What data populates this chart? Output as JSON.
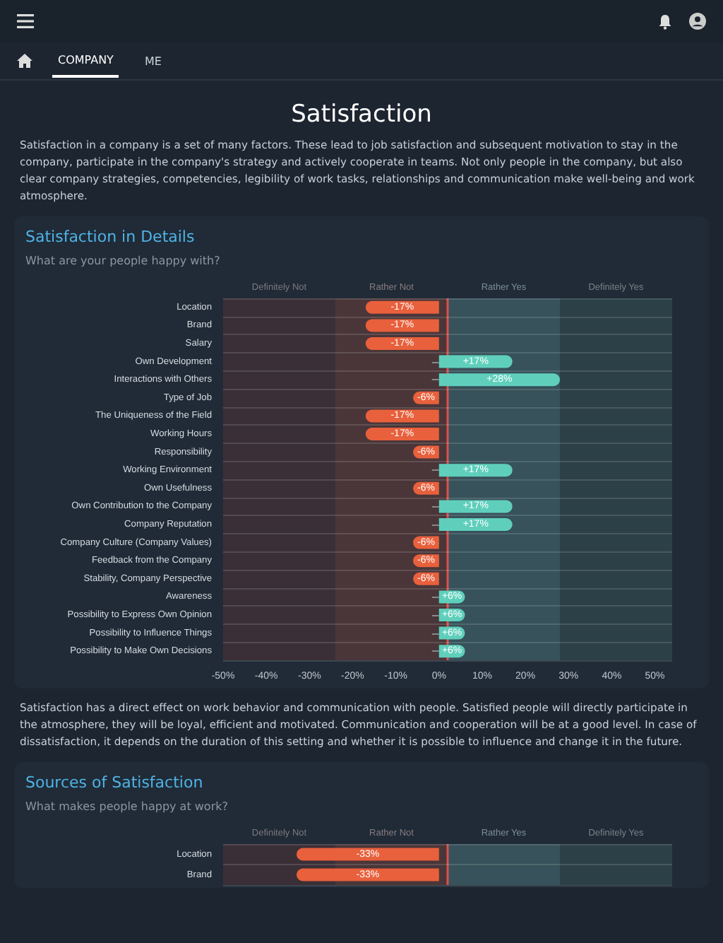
{
  "chart_data": [
    {
      "type": "bar",
      "orientation": "horizontal",
      "title": "Satisfaction in Details",
      "subtitle": "What are your people happy with?",
      "annotations": [
        "COMPANY",
        "ME",
        "Satisfaction",
        "Satisfaction in a company is a set of many factors. These lead to job satisfaction and subsequent motivation to stay in the company, participate in the company's strategy and actively cooperate in teams. Not only people in the company, but also clear company strategies, competencies, legibility of work tasks, relationships and communication make well-being and work atmosphere.",
        "Satisfaction has a direct effect on work behavior and communication with people. Satisfied people will directly participate in the atmosphere, they will be loyal, efficient and motivated. Communication and cooperation will be at a good level. In case of dissatisfaction, it depends on the duration of this setting and whether it is possible to influence and change it in the future."
      ],
      "categories": [
        "Location",
        "Brand",
        "Salary",
        "Own Development",
        "Interactions with Others",
        "Type of Job",
        "The Uniqueness of the Field",
        "Working Hours",
        "Responsibility",
        "Working Environment",
        "Own Usefulness",
        "Own Contribution to the Company",
        "Company Reputation",
        "Company Culture (Company Values)",
        "Feedback from the Company",
        "Stability, Company Perspective",
        "Awareness",
        "Possibility to Express Own Opinion",
        "Possibility to Influence Things",
        "Possibility to Make Own Decisions"
      ],
      "values": [
        -17,
        -17,
        -17,
        17,
        28,
        -6,
        -17,
        -17,
        -6,
        17,
        -6,
        17,
        17,
        -6,
        -6,
        -6,
        6,
        6,
        6,
        6
      ],
      "value_labels": [
        "-17%",
        "-17%",
        "-17%",
        "+17%",
        "+28%",
        "-6%",
        "-17%",
        "-17%",
        "-6%",
        "+17%",
        "-6%",
        "+17%",
        "+17%",
        "-6%",
        "-6%",
        "-6%",
        "+6%",
        "+6%",
        "+6%",
        "+6%"
      ],
      "colors": [
        "#e8603c",
        "#e8603c",
        "#e8603c",
        "#5fcfbc",
        "#5fcfbc",
        "#e8603c",
        "#e8603c",
        "#e8603c",
        "#e8603c",
        "#5fcfbc",
        "#e8603c",
        "#5fcfbc",
        "#5fcfbc",
        "#e8603c",
        "#e8603c",
        "#e8603c",
        "#5fcfbc",
        "#5fcfbc",
        "#5fcfbc",
        "#5fcfbc"
      ],
      "xlim": [
        -50,
        54
      ],
      "xticks": [
        {
          "value": -50,
          "label": "-50%"
        },
        {
          "value": -40,
          "label": "-40%"
        },
        {
          "value": -30,
          "label": "-30%"
        },
        {
          "value": -20,
          "label": "-20%"
        },
        {
          "value": -10,
          "label": "-10%"
        },
        {
          "value": 0,
          "label": "0%"
        },
        {
          "value": 10,
          "label": "10%"
        },
        {
          "value": 20,
          "label": "20%"
        },
        {
          "value": 30,
          "label": "30%"
        },
        {
          "value": 40,
          "label": "40%"
        },
        {
          "value": 50,
          "label": "50%"
        }
      ],
      "bands": [
        {
          "axis": "x",
          "from": -50,
          "to": -24,
          "label": "Definitely Not",
          "color": "#3a2f36"
        },
        {
          "axis": "x",
          "from": -24,
          "to": 2,
          "label": "Rather Not",
          "color": "#4a3639"
        },
        {
          "axis": "x",
          "from": 2,
          "to": 28,
          "label": "Rather Yes",
          "color": "#37525a"
        },
        {
          "axis": "x",
          "from": 28,
          "to": 54,
          "label": "Definitely Yes",
          "color": "#2b4147"
        }
      ],
      "ref_lines": [
        {
          "axis": "x",
          "value": 2,
          "color": "#d9534f"
        }
      ],
      "grid": "y"
    },
    {
      "type": "bar",
      "orientation": "horizontal",
      "title": "Sources of Satisfaction",
      "subtitle": "What makes people happy at work?",
      "categories": [
        "Location",
        "Brand"
      ],
      "values": [
        -33,
        -33
      ],
      "value_labels": [
        "-33%",
        "-33%"
      ],
      "colors": [
        "#e8603c",
        "#e8603c"
      ],
      "xlim": [
        -50,
        54
      ],
      "tick_labels": "y",
      "bands": [
        {
          "axis": "x",
          "from": -50,
          "to": -24,
          "label": "Definitely Not",
          "color": "#3a2f36"
        },
        {
          "axis": "x",
          "from": -24,
          "to": 2,
          "label": "Rather Not",
          "color": "#4a3639"
        },
        {
          "axis": "x",
          "from": 2,
          "to": 28,
          "label": "Rather Yes",
          "color": "#37525a"
        },
        {
          "axis": "x",
          "from": 28,
          "to": 54,
          "label": "Definitely Yes",
          "color": "#2b4147"
        }
      ],
      "ref_lines": [
        {
          "axis": "x",
          "value": 2,
          "color": "#d9534f"
        }
      ],
      "grid": "y"
    }
  ]
}
